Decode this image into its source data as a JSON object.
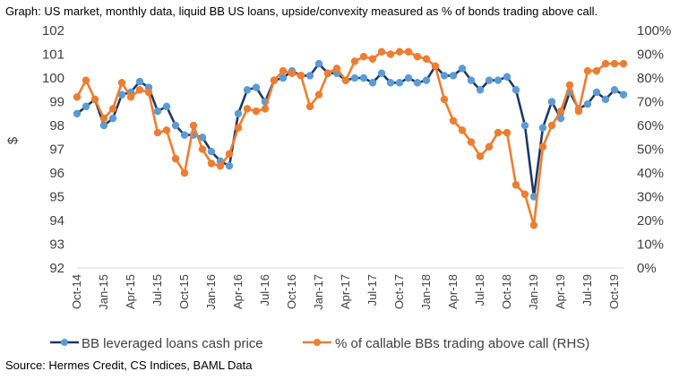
{
  "caption": "Graph: US market, monthly data, liquid BB US loans, upside/convexity measured as % of bonds trading above call.",
  "source": "Source: Hermes Credit, CS Indices, BAML Data",
  "chart_data": {
    "type": "line",
    "ylabel": "$",
    "ylim": [
      92,
      102
    ],
    "y2lim": [
      0,
      100
    ],
    "y_ticks": [
      "92",
      "93",
      "94",
      "95",
      "96",
      "97",
      "98",
      "99",
      "100",
      "101",
      "102"
    ],
    "y2_ticks": [
      "0%",
      "10%",
      "20%",
      "30%",
      "40%",
      "50%",
      "60%",
      "70%",
      "80%",
      "90%",
      "100%"
    ],
    "x_tick_labels": [
      "Oct-14",
      "Jan-15",
      "Apr-15",
      "Jul-15",
      "Oct-15",
      "Jan-16",
      "Apr-16",
      "Jul-16",
      "Oct-16",
      "Jan-17",
      "Apr-17",
      "Jul-17",
      "Oct-17",
      "Jan-18",
      "Apr-18",
      "Jul-18",
      "Oct-18",
      "Jan-19",
      "Apr-19",
      "Jul-19",
      "Oct-19"
    ],
    "months": [
      "Oct-14",
      "Nov-14",
      "Dec-14",
      "Jan-15",
      "Feb-15",
      "Mar-15",
      "Apr-15",
      "May-15",
      "Jun-15",
      "Jul-15",
      "Aug-15",
      "Sep-15",
      "Oct-15",
      "Nov-15",
      "Dec-15",
      "Jan-16",
      "Feb-16",
      "Mar-16",
      "Apr-16",
      "May-16",
      "Jun-16",
      "Jul-16",
      "Aug-16",
      "Sep-16",
      "Oct-16",
      "Nov-16",
      "Dec-16",
      "Jan-17",
      "Feb-17",
      "Mar-17",
      "Apr-17",
      "May-17",
      "Jun-17",
      "Jul-17",
      "Aug-17",
      "Sep-17",
      "Oct-17",
      "Nov-17",
      "Dec-17",
      "Jan-18",
      "Feb-18",
      "Mar-18",
      "Apr-18",
      "May-18",
      "Jun-18",
      "Jul-18",
      "Aug-18",
      "Sep-18",
      "Oct-18",
      "Nov-18",
      "Dec-18",
      "Jan-19",
      "Feb-19",
      "Mar-19",
      "Apr-19",
      "May-19",
      "Jun-19",
      "Jul-19",
      "Aug-19",
      "Sep-19",
      "Oct-19",
      "Nov-19"
    ],
    "series": [
      {
        "name": "BB leveraged loans cash price",
        "axis": "left",
        "color": "#1f3864",
        "marker_color": "#5b9bd5",
        "values": [
          98.5,
          98.8,
          99.1,
          98.0,
          98.3,
          99.3,
          99.4,
          99.85,
          99.6,
          98.6,
          98.8,
          98.0,
          97.6,
          97.6,
          97.5,
          96.9,
          96.5,
          96.3,
          98.5,
          99.5,
          99.6,
          99.0,
          99.9,
          100.0,
          100.3,
          100.1,
          100.1,
          100.6,
          100.2,
          100.2,
          99.9,
          100.0,
          100.0,
          99.8,
          100.2,
          99.8,
          99.8,
          100.0,
          99.8,
          99.9,
          100.5,
          100.1,
          100.1,
          100.4,
          99.9,
          99.5,
          99.9,
          99.9,
          100.05,
          99.5,
          98.0,
          95.0,
          97.9,
          99.0,
          98.3,
          99.4,
          98.7,
          98.9,
          99.4,
          99.1,
          99.5,
          99.3
        ]
      },
      {
        "name": "% of callable BBs trading above call (RHS)",
        "axis": "right",
        "color": "#ed7d31",
        "marker_color": "#ed7d31",
        "values": [
          72,
          79,
          71,
          63,
          67,
          78,
          72,
          75,
          74,
          57,
          58,
          46,
          40,
          60,
          50,
          44,
          43,
          48,
          59,
          67,
          66,
          67,
          79,
          83,
          82,
          81,
          68,
          73,
          82,
          84,
          79,
          87,
          89,
          88,
          91,
          90,
          91,
          91,
          89,
          88,
          85,
          71,
          62,
          58,
          53,
          47,
          51,
          57,
          57,
          35,
          31,
          18,
          51,
          60,
          66,
          77,
          66,
          83,
          83,
          86,
          86,
          86
        ]
      }
    ]
  }
}
